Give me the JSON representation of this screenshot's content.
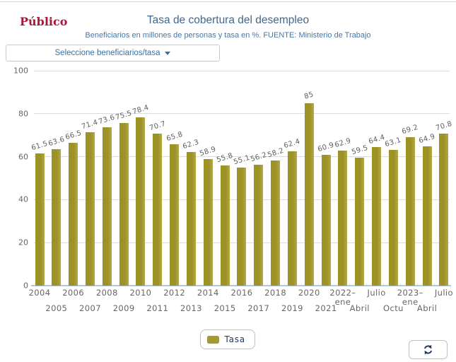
{
  "header": {
    "logo_text": "Público",
    "title": "Tasa de cobertura del desempleo",
    "subtitle": "Beneficiarios en millones de personas y tasa en %. FUENTE: Ministerio de Trabajo"
  },
  "controls": {
    "dropdown_label": "Seleccione beneficiarios/tasa"
  },
  "chart_data": {
    "type": "bar",
    "title": "Tasa de cobertura del desempleo",
    "categories": [
      "2004",
      "2005",
      "2006",
      "2007",
      "2008",
      "2009",
      "2010",
      "2011",
      "2012",
      "2013",
      "2014",
      "2015",
      "2016",
      "2017",
      "2018",
      "2019",
      "2020",
      "2021",
      "2022–\nene",
      "Abril",
      "Julio",
      "Octu",
      "2023–\nene",
      "Abril",
      "Julio"
    ],
    "values": [
      61.5,
      63.6,
      66.5,
      71.4,
      73.6,
      75.5,
      78.4,
      70.7,
      65.8,
      62.3,
      58.9,
      55.8,
      55.1,
      56.2,
      58.2,
      62.4,
      85,
      60.9,
      62.9,
      59.5,
      64.4,
      63.1,
      69.2,
      64.9,
      70.8
    ],
    "series_name": "Tasa",
    "xlabel": "",
    "ylabel": "",
    "ylim": [
      0,
      100
    ],
    "yticks": [
      0,
      20,
      40,
      60,
      80,
      100
    ],
    "grid": true,
    "legend_position": "bottom",
    "bar_color": "#a49a2e",
    "bar_gradient": [
      "#9d9226",
      "#b3a847"
    ]
  },
  "legend": {
    "items": [
      {
        "label": "Tasa",
        "color": "#a49a2e"
      }
    ]
  },
  "icons": {
    "caret_down": "triangle-down",
    "refresh": "circular-arrows"
  },
  "colors": {
    "title_blue": "#41688e",
    "subtitle_blue": "#4677a8",
    "logo_red": "#a8183c",
    "axis_line_blue": "#b3c6de",
    "tick_gray": "#666666",
    "legend_navy": "#1f3864"
  }
}
